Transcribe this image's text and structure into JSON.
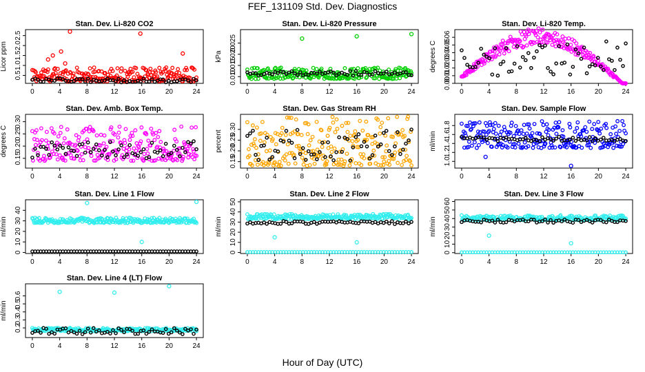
{
  "figure": {
    "title": "FEF_131109  Std. Dev. Diagnostics",
    "xlabel": "Hour of Day (UTC)"
  },
  "chart_data": [
    {
      "type": "scatter",
      "title": "Stan. Dev. Li-820 CO2",
      "ylabel": "Licor ppm",
      "xlim": [
        -1,
        25
      ],
      "ylim": [
        0.1,
        2.8
      ],
      "xticks": [
        0,
        4,
        8,
        12,
        16,
        20,
        24
      ],
      "yticks": [
        0.5,
        1.0,
        1.5,
        2.0,
        2.5
      ],
      "colors": {
        "fill": "#ff0000",
        "black": "#000000"
      },
      "series": [
        {
          "values_summary": {
            "typical": [
              0.2,
              0.9
            ],
            "outliers": [
              [
                2.3,
                1.3
              ],
              [
                3.0,
                1.5
              ],
              [
                4.2,
                1.7
              ],
              [
                4.8,
                1.1
              ],
              [
                5.5,
                2.7
              ],
              [
                15.8,
                2.6
              ],
              [
                22.0,
                1.6
              ]
            ]
          }
        },
        {
          "values_summary": {
            "typical": [
              0.15,
              0.35
            ]
          }
        }
      ]
    },
    {
      "type": "scatter",
      "title": "Stan. Dev. Li-820 Pressure",
      "ylabel": "kPa",
      "xlim": [
        -1,
        25
      ],
      "ylim": [
        0.007,
        0.031
      ],
      "xticks": [
        0,
        4,
        8,
        12,
        16,
        20,
        24
      ],
      "yticks": [
        0.01,
        0.015,
        0.02,
        0.025
      ],
      "colors": {
        "fill": "#00d000",
        "black": "#000000"
      },
      "series": [
        {
          "values_summary": {
            "typical": [
              0.009,
              0.014
            ],
            "outliers": [
              [
                8.0,
                0.027
              ],
              [
                16.0,
                0.028
              ],
              [
                24.0,
                0.029
              ]
            ]
          }
        },
        {
          "values_summary": {
            "typical": [
              0.0105,
              0.0125
            ]
          }
        }
      ]
    },
    {
      "type": "scatter",
      "title": "Stan. Dev. Li-820 Temp.",
      "ylabel": "degrees C",
      "xlim": [
        -1,
        25
      ],
      "ylim": [
        0.0,
        0.07
      ],
      "xticks": [
        0,
        4,
        8,
        12,
        16,
        20,
        24
      ],
      "yticks": [
        0.0,
        0.01,
        0.02,
        0.03,
        0.04,
        0.05,
        0.06
      ],
      "colors": {
        "fill": "#ff00ff",
        "black": "#000000"
      },
      "series": [
        {
          "values_summary": {
            "shape": "rising then falling arch",
            "typical": [
              0.0,
              0.065
            ]
          }
        },
        {
          "values_summary": {
            "typical": [
              0.01,
              0.055
            ]
          }
        }
      ]
    },
    {
      "type": "scatter",
      "title": "Stan. Dev. Amb. Box Temp.",
      "ylabel": "degrees C",
      "xlim": [
        -1,
        25
      ],
      "ylim": [
        0.11,
        0.33
      ],
      "xticks": [
        0,
        4,
        8,
        12,
        16,
        20,
        24
      ],
      "yticks": [
        0.15,
        0.2,
        0.25,
        0.3
      ],
      "colors": {
        "fill": "#ff00ff",
        "black": "#000000"
      },
      "series": [
        {
          "values_summary": {
            "typical": [
              0.14,
              0.28
            ]
          }
        },
        {
          "values_summary": {
            "typical": [
              0.15,
              0.22
            ]
          }
        }
      ]
    },
    {
      "type": "scatter",
      "title": "Stan. Dev. Gas Stream RH",
      "ylabel": "percent",
      "xlim": [
        -1,
        25
      ],
      "ylim": [
        0.12,
        0.37
      ],
      "xticks": [
        0,
        4,
        8,
        12,
        16,
        20,
        24
      ],
      "yticks": [
        0.15,
        0.2,
        0.25,
        0.3
      ],
      "colors": {
        "fill": "#ffa500",
        "black": "#000000"
      },
      "series": [
        {
          "values_summary": {
            "typical": [
              0.13,
              0.36
            ]
          }
        },
        {
          "values_summary": {
            "typical": [
              0.15,
              0.3
            ]
          }
        }
      ]
    },
    {
      "type": "scatter",
      "title": "Stan. Dev. Sample Flow",
      "ylabel": "ml/min",
      "xlim": [
        -1,
        25
      ],
      "ylim": [
        0.85,
        2.05
      ],
      "xticks": [
        0,
        4,
        8,
        12,
        16,
        20,
        24
      ],
      "yticks": [
        1.0,
        1.2,
        1.4,
        1.6,
        1.8
      ],
      "colors": {
        "fill": "#0000ff",
        "black": "#000000"
      },
      "series": [
        {
          "values_summary": {
            "typical": [
              1.3,
              1.9
            ],
            "outliers": [
              [
                16.0,
                0.9
              ],
              [
                3.5,
                1.1
              ]
            ]
          }
        },
        {
          "values_summary": {
            "typical": [
              1.45,
              1.55
            ]
          }
        }
      ]
    },
    {
      "type": "scatter",
      "title": "Stan. Dev. Line 1 Flow",
      "ylabel": "ml/min",
      "xlim": [
        -1,
        25
      ],
      "ylim": [
        -1,
        50
      ],
      "xticks": [
        0,
        4,
        8,
        12,
        16,
        20,
        24
      ],
      "yticks": [
        0,
        10,
        20,
        30,
        40
      ],
      "colors": {
        "fill": "#33eeee",
        "black": "#000000"
      },
      "series": [
        {
          "values_summary": {
            "typical": [
              28,
              33
            ],
            "outliers": [
              [
                16.0,
                10
              ],
              [
                8.0,
                47
              ],
              [
                24.0,
                48
              ]
            ]
          }
        },
        {
          "values_summary": {
            "typical": [
              1,
              1
            ]
          }
        }
      ]
    },
    {
      "type": "scatter",
      "title": "Stan. Dev. Line 2 Flow",
      "ylabel": "ml/min",
      "xlim": [
        -1,
        25
      ],
      "ylim": [
        -1,
        52
      ],
      "xticks": [
        0,
        4,
        8,
        12,
        16,
        20,
        24
      ],
      "yticks": [
        0,
        10,
        20,
        30,
        40,
        50
      ],
      "colors": {
        "fill": "#33eeee",
        "black": "#000000"
      },
      "series": [
        {
          "values_summary": {
            "typical": [
              33,
              38
            ],
            "outliers": [
              [
                16.0,
                10
              ],
              [
                4.0,
                15
              ]
            ]
          }
        },
        {
          "values_summary": {
            "typical": [
              28,
              31
            ]
          }
        },
        {
          "values_summary": {
            "typical": [
              0.5,
              0.5
            ]
          }
        }
      ]
    },
    {
      "type": "scatter",
      "title": "Stan. Dev. Line 3 Flow",
      "ylabel": "ml/min",
      "xlim": [
        -1,
        25
      ],
      "ylim": [
        -1,
        62
      ],
      "xticks": [
        0,
        4,
        8,
        12,
        16,
        20,
        24
      ],
      "yticks": [
        0,
        10,
        20,
        30,
        40,
        50,
        60
      ],
      "colors": {
        "fill": "#33eeee",
        "black": "#000000"
      },
      "series": [
        {
          "values_summary": {
            "typical": [
              38,
              44
            ],
            "outliers": [
              [
                16.0,
                11
              ],
              [
                4.0,
                20
              ]
            ]
          }
        },
        {
          "values_summary": {
            "typical": [
              35,
              39
            ]
          }
        },
        {
          "values_summary": {
            "typical": [
              0.5,
              0.5
            ]
          }
        }
      ]
    },
    {
      "type": "scatter",
      "title": "Stan. Dev. Line 4 (LT) Flow",
      "ylabel": "ml/min",
      "xlim": [
        -1,
        25
      ],
      "ylim": [
        0.08,
        0.75
      ],
      "xticks": [
        0,
        4,
        8,
        12,
        16,
        20,
        24
      ],
      "yticks": [
        0.2,
        0.3,
        0.4,
        0.5,
        0.6
      ],
      "colors": {
        "fill": "#33eeee",
        "black": "#000000"
      },
      "series": [
        {
          "values_summary": {
            "typical": [
              0.16,
              0.2
            ],
            "outliers": [
              [
                4.0,
                0.65
              ],
              [
                12.0,
                0.64
              ],
              [
                20.0,
                0.72
              ]
            ]
          }
        },
        {
          "values_summary": {
            "typical": [
              0.12,
              0.2
            ]
          }
        }
      ]
    }
  ]
}
